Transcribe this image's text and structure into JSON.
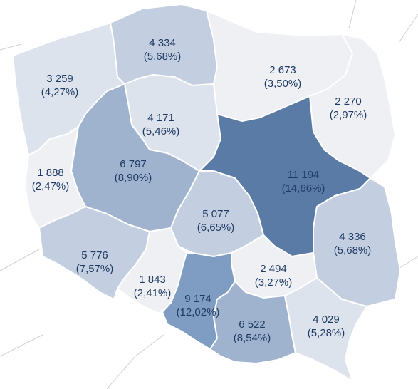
{
  "regions": [
    {
      "id": "zachodniopomorskie",
      "value": "3 259",
      "pct": "(4,27%)",
      "shade": "pale"
    },
    {
      "id": "pomorskie",
      "value": "4 334",
      "pct": "(5,68%)",
      "shade": "mid"
    },
    {
      "id": "warminsko-mazurskie",
      "value": "2 673",
      "pct": "(3,50%)",
      "shade": "light"
    },
    {
      "id": "podlaskie",
      "value": "2 270",
      "pct": "(2,97%)",
      "shade": "light"
    },
    {
      "id": "kujawsko-pomorskie",
      "value": "4 171",
      "pct": "(5,46%)",
      "shade": "pale"
    },
    {
      "id": "lubuskie",
      "value": "1 888",
      "pct": "(2,47%)",
      "shade": "light"
    },
    {
      "id": "wielkopolskie",
      "value": "6 797",
      "pct": "(8,90%)",
      "shade": "med"
    },
    {
      "id": "mazowieckie",
      "value": "11 194",
      "pct": "(14,66%)",
      "shade": "darkest"
    },
    {
      "id": "lodzkie",
      "value": "5 077",
      "pct": "(6,65%)",
      "shade": "mid"
    },
    {
      "id": "dolnoslaskie",
      "value": "5 776",
      "pct": "(7,57%)",
      "shade": "mid"
    },
    {
      "id": "lubelskie",
      "value": "4 336",
      "pct": "(5,68%)",
      "shade": "mid"
    },
    {
      "id": "opolskie",
      "value": "1 843",
      "pct": "(2,41%)",
      "shade": "light"
    },
    {
      "id": "swietokrzyskie",
      "value": "2 494",
      "pct": "(3,27%)",
      "shade": "light"
    },
    {
      "id": "slaskie",
      "value": "9 174",
      "pct": "(12,02%)",
      "shade": "dark"
    },
    {
      "id": "malopolskie",
      "value": "6 522",
      "pct": "(8,54%)",
      "shade": "med"
    },
    {
      "id": "podkarpackie",
      "value": "4 029",
      "pct": "(5,28%)",
      "shade": "pale"
    }
  ]
}
